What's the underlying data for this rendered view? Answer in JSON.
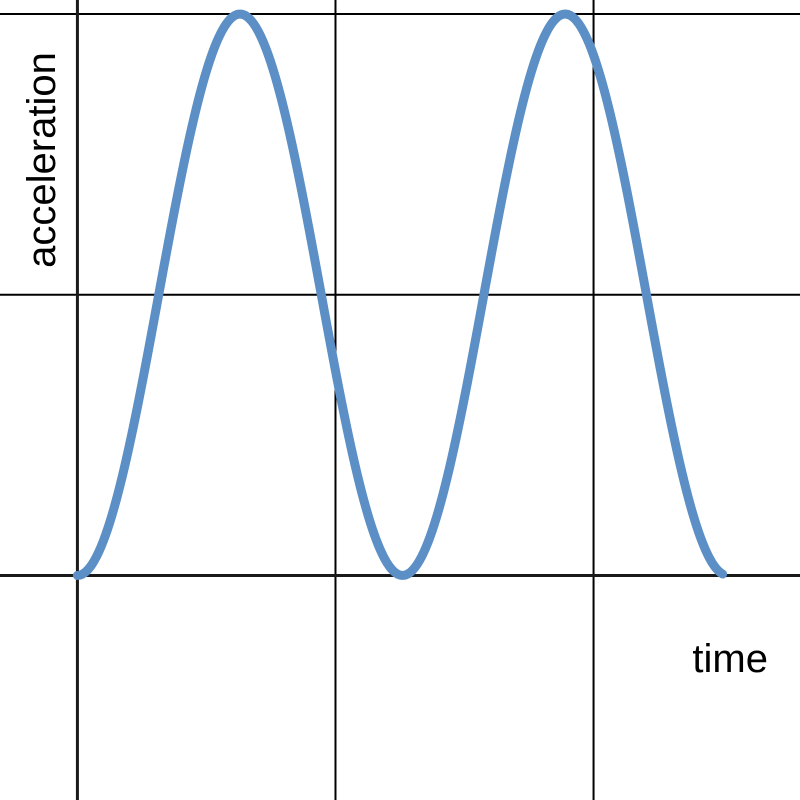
{
  "chart_data": {
    "type": "line",
    "xlabel": "time",
    "ylabel": "acceleration",
    "xlim": [
      -0.3,
      2.8
    ],
    "ylim": [
      -0.8,
      2.05
    ],
    "x_gridlines": [
      0,
      1,
      2
    ],
    "y_gridlines": [
      0,
      1,
      2
    ],
    "grid": true,
    "series": [
      {
        "color": "#5b8fc5",
        "function": "1 - cos(2*pi*x/1.26)",
        "x_range": [
          0,
          2.5
        ],
        "x": [
          0,
          0.315,
          0.63,
          0.945,
          1.26,
          1.575,
          1.89,
          2.205,
          2.5
        ],
        "y": [
          0,
          1,
          2,
          1,
          0,
          1,
          2,
          1,
          0.04
        ]
      }
    ]
  }
}
